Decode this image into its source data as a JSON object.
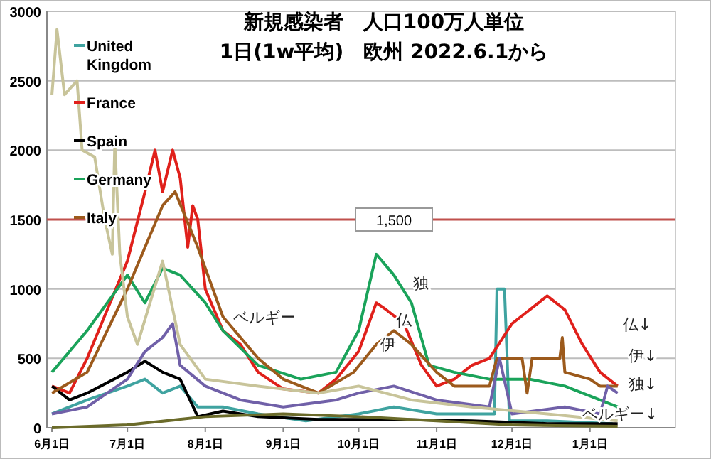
{
  "chart_data": {
    "type": "line",
    "title": "新規感染者　人口100万人単位",
    "subtitle": "1日(1w平均)　欧州 2022.6.1から",
    "xlim": [
      "2022-05-30",
      "2023-02-04"
    ],
    "ylim": [
      0,
      3000
    ],
    "yticks": [
      0,
      500,
      1000,
      1500,
      2000,
      2500,
      3000
    ],
    "xticks": [
      {
        "value": "2022-06-01",
        "label": "6月1日"
      },
      {
        "value": "2022-07-01",
        "label": "7月1日"
      },
      {
        "value": "2022-08-01",
        "label": "8月1日"
      },
      {
        "value": "2022-09-01",
        "label": "9月1日"
      },
      {
        "value": "2022-10-01",
        "label": "10月1日"
      },
      {
        "value": "2022-11-01",
        "label": "11月1日"
      },
      {
        "value": "2022-12-01",
        "label": "12月1日"
      },
      {
        "value": "2023-01-01",
        "label": "1月1日"
      }
    ],
    "grid": "y",
    "legend": "top left",
    "line_style": "solid",
    "ref_lines": [
      {
        "axis": "y",
        "value": 1500,
        "label": "1,500",
        "color": "#c0504d"
      }
    ],
    "annotations": [
      "独",
      "仏",
      "伊",
      "ベルギー",
      "仏↓",
      "伊↓",
      "独↓",
      "ベルギー↓"
    ],
    "series": [
      {
        "name": "United Kingdom",
        "color": "#3fa3a0",
        "x": [
          "2022-06-01",
          "2022-06-15",
          "2022-07-01",
          "2022-07-08",
          "2022-07-15",
          "2022-07-22",
          "2022-07-29",
          "2022-08-08",
          "2022-08-22",
          "2022-09-10",
          "2022-10-01",
          "2022-10-15",
          "2022-11-01",
          "2022-11-24",
          "2022-11-25",
          "2022-11-28",
          "2022-11-30",
          "2022-12-15",
          "2023-01-10"
        ],
        "values": [
          100,
          200,
          300,
          350,
          250,
          300,
          150,
          150,
          100,
          50,
          100,
          150,
          100,
          100,
          1000,
          1000,
          50,
          50,
          30
        ]
      },
      {
        "name": "France",
        "color": "#e0201b",
        "x": [
          "2022-06-01",
          "2022-06-08",
          "2022-06-15",
          "2022-07-01",
          "2022-07-08",
          "2022-07-12",
          "2022-07-15",
          "2022-07-19",
          "2022-07-22",
          "2022-07-25",
          "2022-07-27",
          "2022-07-29",
          "2022-08-01",
          "2022-08-08",
          "2022-08-15",
          "2022-08-22",
          "2022-09-01",
          "2022-09-15",
          "2022-09-22",
          "2022-10-01",
          "2022-10-08",
          "2022-10-12",
          "2022-10-19",
          "2022-10-26",
          "2022-11-01",
          "2022-11-08",
          "2022-11-15",
          "2022-11-22",
          "2022-12-01",
          "2022-12-08",
          "2022-12-15",
          "2022-12-22",
          "2022-12-29",
          "2023-01-05",
          "2023-01-12"
        ],
        "values": [
          300,
          250,
          500,
          1200,
          1700,
          2000,
          1700,
          2000,
          1800,
          1300,
          1600,
          1500,
          1000,
          700,
          600,
          400,
          280,
          250,
          350,
          550,
          900,
          850,
          750,
          450,
          300,
          350,
          450,
          500,
          750,
          850,
          950,
          850,
          600,
          400,
          300
        ]
      },
      {
        "name": "Spain",
        "color": "#000000",
        "x": [
          "2022-06-01",
          "2022-06-08",
          "2022-06-15",
          "2022-07-01",
          "2022-07-08",
          "2022-07-15",
          "2022-07-22",
          "2022-07-29",
          "2022-08-08",
          "2022-08-22",
          "2022-09-15",
          "2022-10-15",
          "2022-11-15",
          "2022-12-15",
          "2023-01-12"
        ],
        "values": [
          300,
          200,
          250,
          400,
          480,
          400,
          350,
          80,
          120,
          80,
          60,
          60,
          50,
          30,
          30
        ]
      },
      {
        "name": "Germany",
        "color": "#1aa35a",
        "x": [
          "2022-06-01",
          "2022-06-15",
          "2022-07-01",
          "2022-07-08",
          "2022-07-15",
          "2022-07-22",
          "2022-08-01",
          "2022-08-08",
          "2022-08-22",
          "2022-09-08",
          "2022-09-22",
          "2022-10-01",
          "2022-10-08",
          "2022-10-15",
          "2022-10-22",
          "2022-10-29",
          "2022-11-08",
          "2022-11-22",
          "2022-12-08",
          "2022-12-22",
          "2023-01-05",
          "2023-01-12"
        ],
        "values": [
          400,
          700,
          1100,
          900,
          1150,
          1100,
          900,
          700,
          450,
          350,
          400,
          700,
          1250,
          1100,
          900,
          450,
          400,
          350,
          350,
          300,
          200,
          150
        ]
      },
      {
        "name": "Italy",
        "color": "#9c5a1c",
        "x": [
          "2022-06-01",
          "2022-06-15",
          "2022-07-01",
          "2022-07-15",
          "2022-07-20",
          "2022-07-29",
          "2022-08-08",
          "2022-08-22",
          "2022-09-01",
          "2022-09-15",
          "2022-09-29",
          "2022-10-08",
          "2022-10-15",
          "2022-10-22",
          "2022-11-01",
          "2022-11-08",
          "2022-11-22",
          "2022-11-25",
          "2022-12-05",
          "2022-12-07",
          "2022-12-09",
          "2022-12-20",
          "2022-12-21",
          "2022-12-22",
          "2023-01-01",
          "2023-01-05",
          "2023-01-12"
        ],
        "values": [
          250,
          400,
          1000,
          1600,
          1700,
          1300,
          800,
          500,
          350,
          250,
          400,
          600,
          700,
          600,
          400,
          300,
          300,
          500,
          500,
          250,
          500,
          500,
          650,
          400,
          350,
          300,
          300
        ]
      },
      {
        "color": "#7060a8",
        "x": [
          "2022-06-01",
          "2022-06-15",
          "2022-07-01",
          "2022-07-08",
          "2022-07-15",
          "2022-07-19",
          "2022-07-22",
          "2022-08-01",
          "2022-08-15",
          "2022-09-01",
          "2022-09-22",
          "2022-10-01",
          "2022-10-15",
          "2022-11-01",
          "2022-11-22",
          "2022-11-26",
          "2022-12-01",
          "2022-12-22",
          "2023-01-05",
          "2023-01-08",
          "2023-01-12"
        ],
        "values": [
          100,
          150,
          350,
          550,
          650,
          750,
          450,
          300,
          200,
          150,
          200,
          250,
          300,
          200,
          150,
          500,
          100,
          150,
          100,
          300,
          250
        ]
      },
      {
        "color": "#c8c49a",
        "x": [
          "2022-06-01",
          "2022-06-03",
          "2022-06-06",
          "2022-06-11",
          "2022-06-13",
          "2022-06-18",
          "2022-06-22",
          "2022-06-25",
          "2022-06-26",
          "2022-06-28",
          "2022-07-01",
          "2022-07-05",
          "2022-07-15",
          "2022-07-22",
          "2022-08-01",
          "2022-08-22",
          "2022-09-15",
          "2022-10-01",
          "2022-10-22",
          "2022-11-15",
          "2022-12-15",
          "2023-01-12"
        ],
        "values": [
          2400,
          2870,
          2400,
          2500,
          2000,
          1950,
          1500,
          1250,
          2050,
          1250,
          800,
          600,
          1200,
          600,
          350,
          300,
          250,
          300,
          200,
          150,
          100,
          50
        ]
      },
      {
        "color": "#6b6b2a",
        "x": [
          "2022-06-01",
          "2022-07-01",
          "2022-08-01",
          "2022-09-01",
          "2022-10-01",
          "2022-11-01",
          "2022-12-01",
          "2023-01-12"
        ],
        "values": [
          0,
          20,
          80,
          100,
          80,
          50,
          20,
          10
        ]
      }
    ]
  }
}
